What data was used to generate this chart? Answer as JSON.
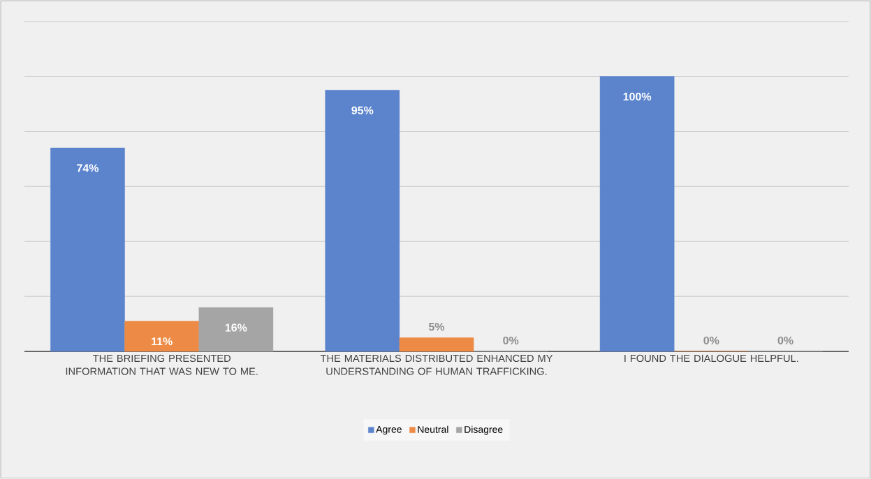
{
  "chart_data": {
    "type": "bar",
    "categories": [
      "THE BRIEFING PRESENTED INFORMATION THAT WAS NEW TO ME.",
      "THE MATERIALS DISTRIBUTED ENHANCED MY UNDERSTANDING OF HUMAN TRAFFICKING.",
      "I FOUND THE DIALOGUE HELPFUL."
    ],
    "series": [
      {
        "name": "Agree",
        "color": "#5b84cd",
        "values": [
          74,
          95,
          100
        ],
        "value_labels": [
          "74%",
          "95%",
          "100%"
        ]
      },
      {
        "name": "Neutral",
        "color": "#ed8a45",
        "values": [
          11,
          5,
          0
        ],
        "value_labels": [
          "11%",
          "5%",
          "0%"
        ]
      },
      {
        "name": "Disagree",
        "color": "#a5a5a5",
        "values": [
          16,
          0,
          0
        ],
        "value_labels": [
          "16%",
          "0%",
          "0%"
        ]
      }
    ],
    "tick_labels": "x",
    "grid": "y",
    "legend": "bottom"
  }
}
